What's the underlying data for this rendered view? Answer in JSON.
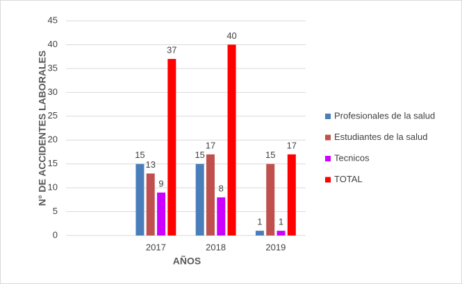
{
  "chart_data": {
    "type": "bar",
    "y_label": "N° DE ACCIDENTES LABORALES",
    "x_label": "AÑOS",
    "categories": [
      null,
      "2017",
      "2018",
      "2019"
    ],
    "series": [
      {
        "name": "Profesionales de la salud",
        "color": "#4a7ebb",
        "values": [
          null,
          15,
          15,
          1
        ]
      },
      {
        "name": "Estudiantes de la salud",
        "color": "#c0504d",
        "values": [
          null,
          13,
          17,
          15
        ]
      },
      {
        "name": "Tecnicos",
        "color": "#cc00ff",
        "values": [
          null,
          9,
          8,
          1
        ]
      },
      {
        "name": "TOTAL",
        "color": "#ff0000",
        "values": [
          null,
          37,
          40,
          17
        ]
      }
    ],
    "ylim": [
      0,
      45
    ],
    "yticks": [
      0,
      5,
      10,
      15,
      20,
      25,
      30,
      35,
      40,
      45
    ],
    "grid": true,
    "legend": "right"
  }
}
